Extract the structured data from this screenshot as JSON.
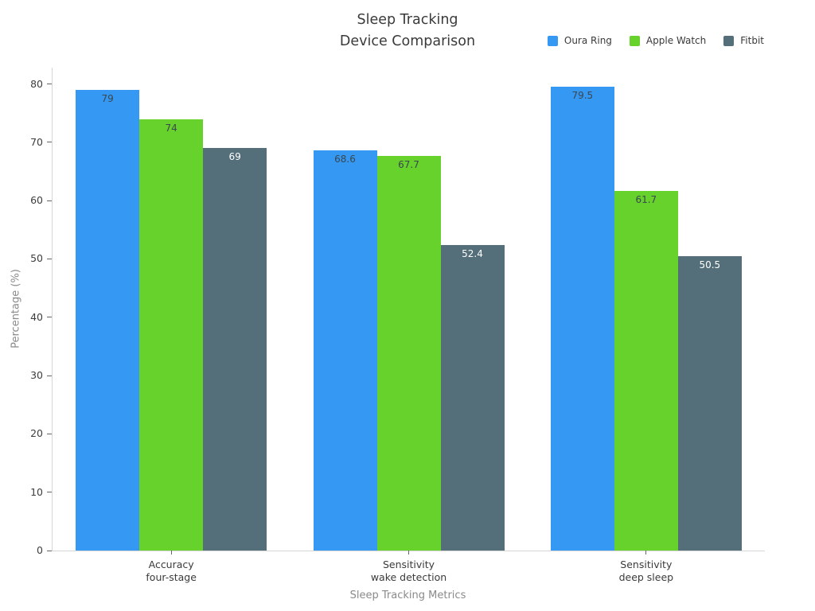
{
  "title": {
    "line1": "Sleep Tracking",
    "line2": "Device Comparison"
  },
  "chart_data": {
    "type": "bar",
    "title": "Sleep Tracking\nDevice Comparison",
    "categories": [
      [
        "Accuracy",
        "four-stage"
      ],
      [
        "Sensitivity",
        "wake detection"
      ],
      [
        "Sensitivity",
        "deep sleep"
      ]
    ],
    "series": [
      {
        "name": "Oura Ring",
        "color": "#3598f2",
        "label_color": "#3a4750",
        "values": [
          79,
          68.6,
          79.5
        ]
      },
      {
        "name": "Apple Watch",
        "color": "#66d22b",
        "label_color": "#3a4750",
        "values": [
          74,
          67.7,
          61.7
        ]
      },
      {
        "name": "Fitbit",
        "color": "#546e7a",
        "label_color": "#ffffff",
        "values": [
          69,
          52.4,
          50.5
        ]
      }
    ],
    "xlabel": "Sleep Tracking Metrics",
    "ylabel": "Percentage (%)",
    "ylim": [
      0,
      82.8
    ],
    "yticks": [
      0,
      10,
      20,
      30,
      40,
      50,
      60,
      70,
      80
    ],
    "grid": false,
    "legend_position": "top-right",
    "value_labels": "inside-top"
  }
}
